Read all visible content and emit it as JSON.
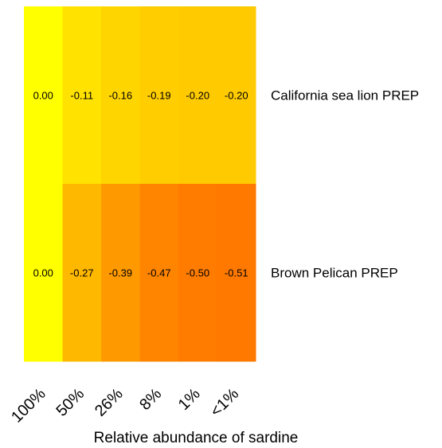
{
  "chart_data": {
    "type": "heatmap",
    "title": "",
    "xlabel": "Relative abundance of sardine",
    "ylabel": "",
    "columns": [
      "100%",
      "50%",
      "26%",
      "8%",
      "1%",
      "<1%"
    ],
    "rows": [
      "California sea lion PREP",
      "Brown Pelican PREP"
    ],
    "values": [
      [
        0.0,
        -0.11,
        -0.16,
        -0.19,
        -0.2,
        -0.2
      ],
      [
        0.0,
        -0.27,
        -0.39,
        -0.47,
        -0.5,
        -0.51
      ]
    ],
    "value_labels": [
      [
        "0.00",
        "-0.11",
        "-0.16",
        "-0.19",
        "-0.20",
        "-0.20"
      ],
      [
        "0.00",
        "-0.27",
        "-0.39",
        "-0.47",
        "-0.50",
        "-0.51"
      ]
    ],
    "color_scale": {
      "low": "#ff6f00",
      "high": "#ffff00",
      "domain": [
        -0.55,
        0.0
      ]
    },
    "legend": "none",
    "grid": false
  }
}
